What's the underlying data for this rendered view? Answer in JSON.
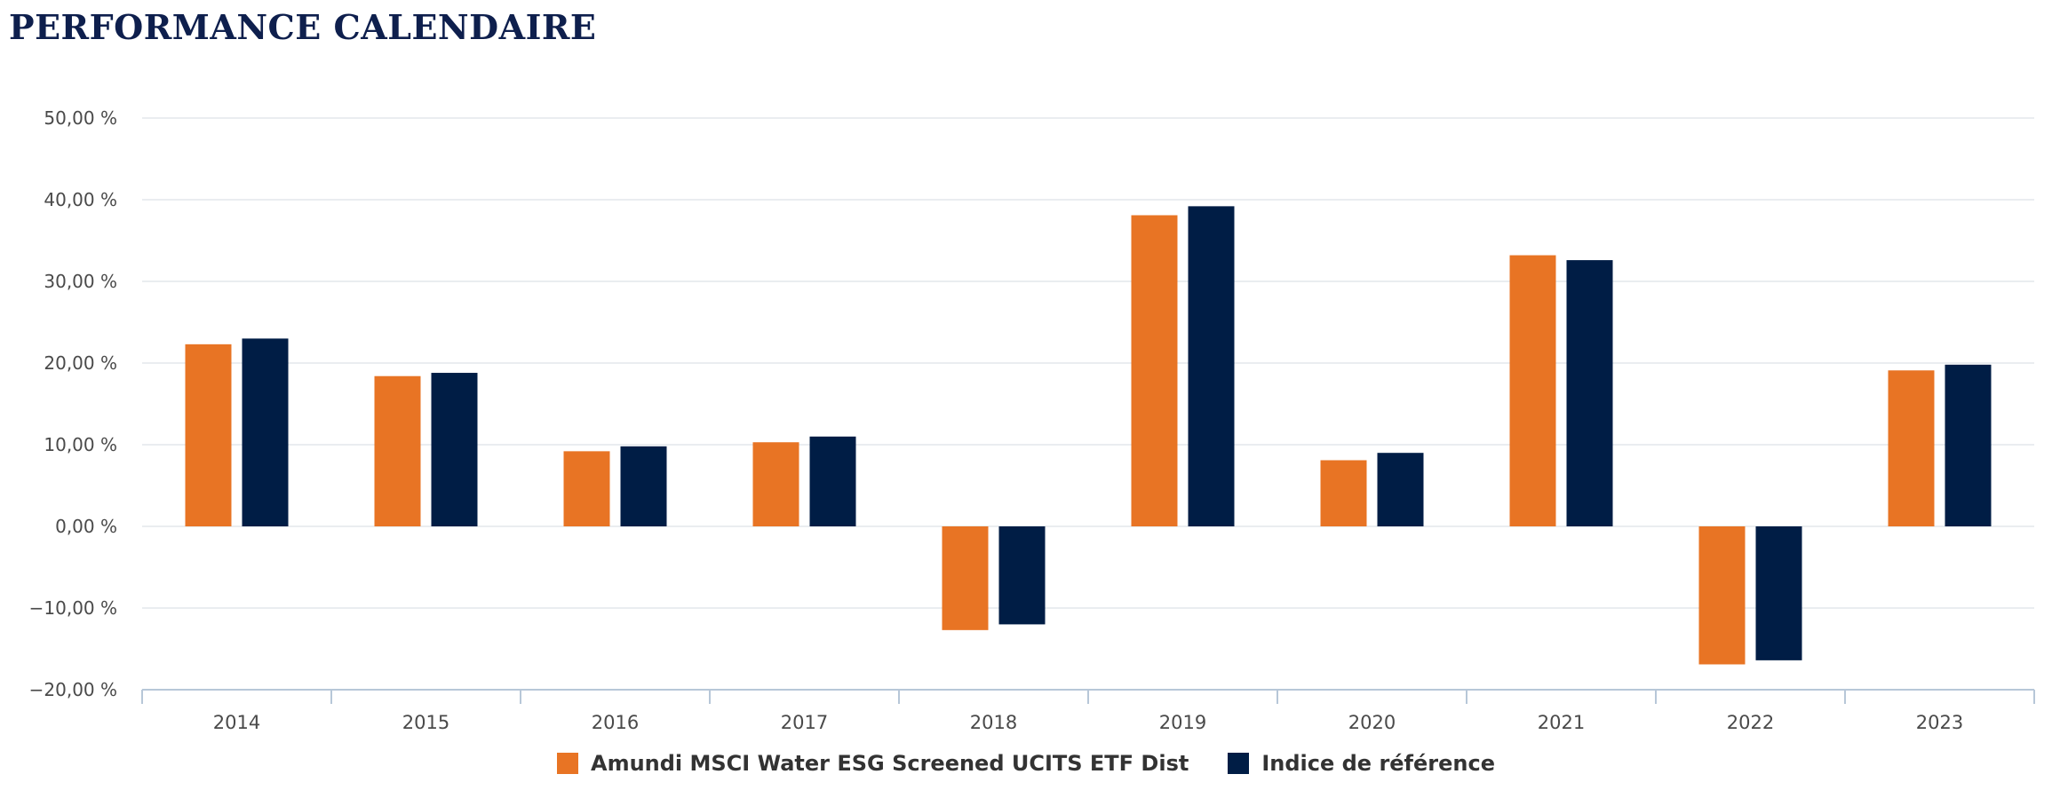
{
  "page": {
    "title": "PERFORMANCE CALENDAIRE"
  },
  "colors": {
    "fund": "#E87424",
    "index": "#001D45",
    "grid": "#E3E7EC",
    "axis": "#B7C7D8",
    "title": "#0E1F4D"
  },
  "chart_data": {
    "type": "bar",
    "title": "",
    "xlabel": "",
    "ylabel": "",
    "categories": [
      "2014",
      "2015",
      "2016",
      "2017",
      "2018",
      "2019",
      "2020",
      "2021",
      "2022",
      "2023"
    ],
    "series": [
      {
        "name": "Amundi MSCI Water ESG Screened UCITS ETF Dist",
        "color": "#E87424",
        "values": [
          22.3,
          18.4,
          9.2,
          10.3,
          -12.7,
          38.1,
          8.1,
          33.2,
          -16.9,
          19.1
        ]
      },
      {
        "name": "Indice de référence",
        "color": "#001D45",
        "values": [
          23.0,
          18.8,
          9.8,
          11.0,
          -12.0,
          39.2,
          9.0,
          32.6,
          -16.4,
          19.8
        ]
      }
    ],
    "ylim": [
      -20,
      50
    ],
    "yticks": [
      {
        "value": 50,
        "label": "50,00 %"
      },
      {
        "value": 40,
        "label": "40,00 %"
      },
      {
        "value": 30,
        "label": "30,00 %"
      },
      {
        "value": 20,
        "label": "20,00 %"
      },
      {
        "value": 10,
        "label": "10,00 %"
      },
      {
        "value": 0,
        "label": "0,00 %"
      },
      {
        "value": -10,
        "label": "−10,00 %"
      },
      {
        "value": -20,
        "label": "−20,00 %"
      }
    ],
    "grid": true,
    "legend_position": "bottom-center"
  }
}
